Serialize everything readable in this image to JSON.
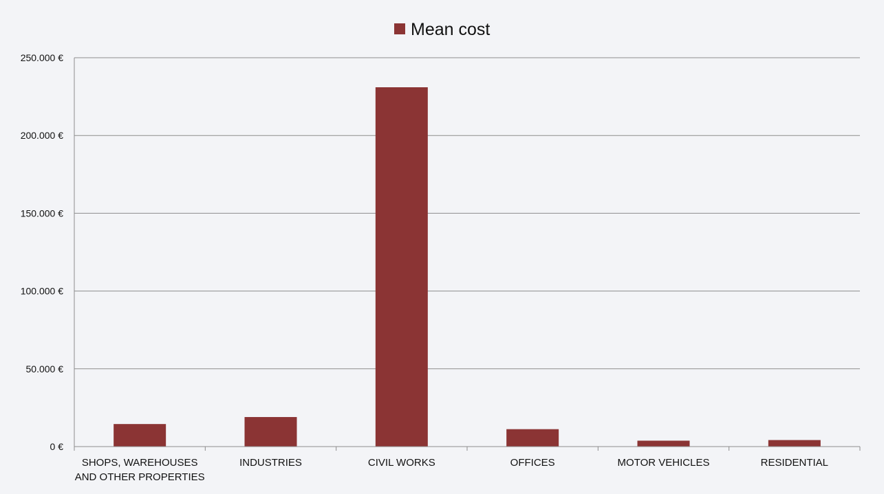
{
  "chart_data": {
    "type": "bar",
    "legend": {
      "position": "top"
    },
    "series": [
      {
        "name": "Mean cost",
        "color": "#8b3434",
        "values": [
          14500,
          19000,
          231000,
          11200,
          3800,
          4200
        ]
      }
    ],
    "categories": [
      [
        "SHOPS, WAREHOUSES",
        "AND OTHER PROPERTIES"
      ],
      [
        "INDUSTRIES"
      ],
      [
        "CIVIL WORKS"
      ],
      [
        "OFFICES"
      ],
      [
        "MOTOR VEHICLES"
      ],
      [
        "RESIDENTIAL"
      ]
    ],
    "y_ticks": [
      0,
      50000,
      100000,
      150000,
      200000,
      250000
    ],
    "y_tick_labels": [
      "0 €",
      "50.000 €",
      "100.000 €",
      "150.000 €",
      "200.000 €",
      "250.000 €"
    ],
    "ylim": [
      0,
      250000
    ],
    "grid": true,
    "colors": {
      "background": "#f3f4f7",
      "grid": "#8c8c8c",
      "axis": "#8c8c8c",
      "text": "#111111"
    }
  }
}
